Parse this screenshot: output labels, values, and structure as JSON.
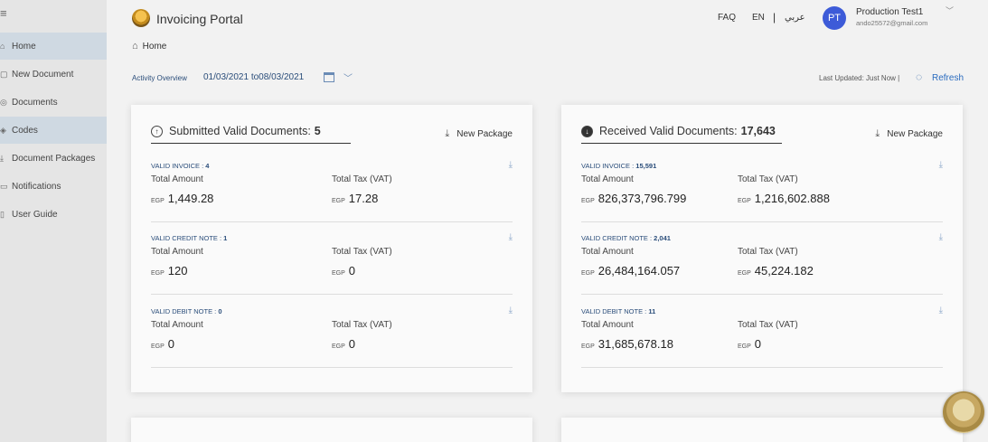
{
  "sidebar": {
    "menu_icon": "≡",
    "items": [
      {
        "icon": "⌂",
        "label": "Home"
      },
      {
        "icon": "▢",
        "label": "New Document"
      },
      {
        "icon": "◎",
        "label": "Documents"
      },
      {
        "icon": "◈",
        "label": "Codes"
      },
      {
        "icon": "⤓",
        "label": "Document Packages"
      },
      {
        "icon": "▭",
        "label": "Notifications"
      },
      {
        "icon": "▯",
        "label": "User Guide"
      }
    ]
  },
  "header": {
    "title": "Invoicing Portal",
    "faq": "FAQ",
    "lang_en": "EN",
    "separator": "|",
    "lang_ar": "عربي",
    "avatar_initials": "PT",
    "user_name": "Production Test1",
    "user_email": "ando25572@gmail.com"
  },
  "breadcrumb": {
    "label": "Home"
  },
  "activity": {
    "label": "Activity Overview",
    "date_range": "01/03/2021 to08/03/2021",
    "last_updated": "Last Updated: Just Now |",
    "refresh_label": "Refresh"
  },
  "cards": {
    "submitted": {
      "title": "Submitted Valid Documents:",
      "count": "5",
      "package_label": "New Package",
      "sections": [
        {
          "title": "VALID INVOICE : ",
          "count": "4",
          "amount_label": "Total Amount",
          "tax_label": "Total Tax (VAT)",
          "currency": "EGP",
          "amount": "1,449.28",
          "tax": "17.28"
        },
        {
          "title": "VALID CREDIT NOTE : ",
          "count": "1",
          "amount_label": "Total Amount",
          "tax_label": "Total Tax (VAT)",
          "currency": "EGP",
          "amount": "120",
          "tax": "0"
        },
        {
          "title": "VALID DEBIT NOTE : ",
          "count": "0",
          "amount_label": "Total Amount",
          "tax_label": "Total Tax (VAT)",
          "currency": "EGP",
          "amount": "0",
          "tax": "0"
        }
      ]
    },
    "received": {
      "title": "Received Valid Documents:",
      "count": "17,643",
      "package_label": "New Package",
      "sections": [
        {
          "title": "VALID INVOICE : ",
          "count": "15,591",
          "amount_label": "Total Amount",
          "tax_label": "Total Tax (VAT)",
          "currency": "EGP",
          "amount": "826,373,796.799",
          "tax": "1,216,602.888"
        },
        {
          "title": "VALID CREDIT NOTE : ",
          "count": "2,041",
          "amount_label": "Total Amount",
          "tax_label": "Total Tax (VAT)",
          "currency": "EGP",
          "amount": "26,484,164.057",
          "tax": "45,224.182"
        },
        {
          "title": "VALID DEBIT NOTE : ",
          "count": "11",
          "amount_label": "Total Amount",
          "tax_label": "Total Tax (VAT)",
          "currency": "EGP",
          "amount": "31,685,678.18",
          "tax": "0"
        }
      ]
    }
  },
  "colors": {
    "accent": "#3d5bd8",
    "link": "#2a6bbf",
    "sidebar_active": "#cfd9e2"
  },
  "icons": {
    "home": "home-icon",
    "calendar": "calendar-icon",
    "refresh": "refresh-icon",
    "download": "download-icon"
  }
}
